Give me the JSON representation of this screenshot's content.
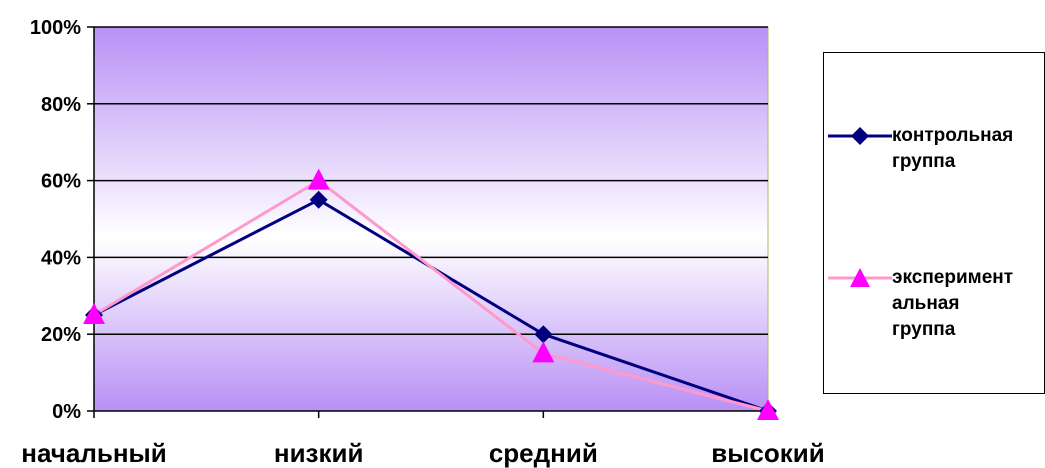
{
  "chart_data": {
    "type": "line",
    "categories": [
      "начальный",
      "низкий",
      "средний",
      "высокий"
    ],
    "series": [
      {
        "name": "контрольная группа",
        "values": [
          25,
          55,
          20,
          0
        ],
        "color": "#000080",
        "marker": "diamond"
      },
      {
        "name": "экспериментальная группа",
        "values": [
          25,
          60,
          15,
          0
        ],
        "color": "#FF99CC",
        "marker_color": "#FF00FF",
        "marker": "triangle"
      }
    ],
    "y_ticks": [
      "0%",
      "20%",
      "40%",
      "60%",
      "80%",
      "100%"
    ],
    "ylim": [
      0,
      100
    ],
    "grid": true,
    "legend_position": "right",
    "plot_background": {
      "gradient": [
        "#B890F5",
        "#FFFFFF",
        "#B890F5"
      ]
    }
  },
  "legend": {
    "items": [
      {
        "line1": "контрольная",
        "line2": "группа",
        "line3": ""
      },
      {
        "line1": "эксперимент",
        "line2": "альная",
        "line3": "группа"
      }
    ]
  }
}
